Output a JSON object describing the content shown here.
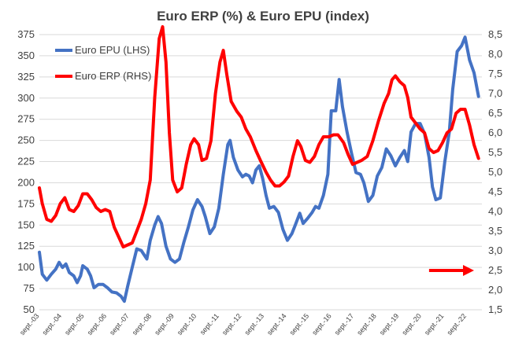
{
  "chart_data": {
    "type": "line",
    "title": "Euro ERP (%) & Euro EPU (index)",
    "legend_position": "top-left",
    "grid": true,
    "y_left": {
      "range": [
        50,
        375
      ],
      "ticks": [
        "50",
        "75",
        "100",
        "125",
        "150",
        "175",
        "200",
        "225",
        "250",
        "275",
        "300",
        "325",
        "350",
        "375"
      ]
    },
    "y_right": {
      "range": [
        1.5,
        8.5
      ],
      "ticks": [
        "1,5",
        "2,0",
        "2,5",
        "3,0",
        "3,5",
        "4,0",
        "4,5",
        "5,0",
        "5,5",
        "6,0",
        "6,5",
        "7,0",
        "7,5",
        "8,0",
        "8,5"
      ]
    },
    "x_ticks": [
      "sept.-03",
      "sept.-04",
      "sept.-05",
      "sept.-06",
      "sept.-07",
      "sept.-08",
      "sept.-09",
      "sept.-10",
      "sept.-11",
      "sept.-12",
      "sept.-13",
      "sept.-14",
      "sept.-15",
      "sept.-16",
      "sept.-17",
      "sept.-18",
      "sept.-19",
      "sept.-20",
      "sept.-21",
      "sept.-22"
    ],
    "x_range": [
      2003.67,
      2023.35
    ],
    "series": [
      {
        "name": "Euro EPU (LHS)",
        "axis": "left",
        "color": "#4472c4",
        "points": [
          [
            2003.67,
            118
          ],
          [
            2003.8,
            92
          ],
          [
            2004.0,
            85
          ],
          [
            2004.2,
            92
          ],
          [
            2004.4,
            98
          ],
          [
            2004.55,
            106
          ],
          [
            2004.7,
            100
          ],
          [
            2004.85,
            104
          ],
          [
            2005.0,
            94
          ],
          [
            2005.2,
            90
          ],
          [
            2005.35,
            82
          ],
          [
            2005.5,
            90
          ],
          [
            2005.6,
            102
          ],
          [
            2005.8,
            98
          ],
          [
            2005.95,
            90
          ],
          [
            2006.1,
            76
          ],
          [
            2006.3,
            80
          ],
          [
            2006.5,
            80
          ],
          [
            2006.7,
            76
          ],
          [
            2006.9,
            71
          ],
          [
            2007.1,
            70
          ],
          [
            2007.3,
            66
          ],
          [
            2007.45,
            60
          ],
          [
            2007.6,
            78
          ],
          [
            2007.8,
            100
          ],
          [
            2008.0,
            122
          ],
          [
            2008.2,
            120
          ],
          [
            2008.45,
            110
          ],
          [
            2008.6,
            132
          ],
          [
            2008.8,
            150
          ],
          [
            2008.95,
            160
          ],
          [
            2009.1,
            152
          ],
          [
            2009.3,
            125
          ],
          [
            2009.5,
            110
          ],
          [
            2009.7,
            106
          ],
          [
            2009.9,
            110
          ],
          [
            2010.1,
            130
          ],
          [
            2010.3,
            148
          ],
          [
            2010.5,
            168
          ],
          [
            2010.7,
            180
          ],
          [
            2010.9,
            172
          ],
          [
            2011.05,
            160
          ],
          [
            2011.25,
            140
          ],
          [
            2011.45,
            148
          ],
          [
            2011.65,
            170
          ],
          [
            2011.85,
            210
          ],
          [
            2012.05,
            245
          ],
          [
            2012.15,
            250
          ],
          [
            2012.3,
            230
          ],
          [
            2012.5,
            215
          ],
          [
            2012.7,
            207
          ],
          [
            2012.85,
            210
          ],
          [
            2013.0,
            208
          ],
          [
            2013.15,
            200
          ],
          [
            2013.3,
            215
          ],
          [
            2013.45,
            220
          ],
          [
            2013.6,
            205
          ],
          [
            2013.75,
            185
          ],
          [
            2013.9,
            170
          ],
          [
            2014.1,
            172
          ],
          [
            2014.3,
            165
          ],
          [
            2014.5,
            145
          ],
          [
            2014.7,
            132
          ],
          [
            2014.9,
            140
          ],
          [
            2015.05,
            150
          ],
          [
            2015.25,
            164
          ],
          [
            2015.4,
            152
          ],
          [
            2015.6,
            158
          ],
          [
            2015.8,
            165
          ],
          [
            2015.95,
            172
          ],
          [
            2016.1,
            170
          ],
          [
            2016.3,
            185
          ],
          [
            2016.5,
            210
          ],
          [
            2016.65,
            285
          ],
          [
            2016.85,
            285
          ],
          [
            2017.0,
            322
          ],
          [
            2017.15,
            290
          ],
          [
            2017.35,
            260
          ],
          [
            2017.55,
            235
          ],
          [
            2017.75,
            212
          ],
          [
            2017.95,
            210
          ],
          [
            2018.1,
            200
          ],
          [
            2018.3,
            178
          ],
          [
            2018.5,
            185
          ],
          [
            2018.7,
            208
          ],
          [
            2018.9,
            218
          ],
          [
            2019.1,
            240
          ],
          [
            2019.3,
            232
          ],
          [
            2019.5,
            220
          ],
          [
            2019.7,
            230
          ],
          [
            2019.9,
            238
          ],
          [
            2020.05,
            225
          ],
          [
            2020.2,
            260
          ],
          [
            2020.4,
            270
          ],
          [
            2020.6,
            270
          ],
          [
            2020.8,
            258
          ],
          [
            2021.0,
            230
          ],
          [
            2021.15,
            195
          ],
          [
            2021.3,
            180
          ],
          [
            2021.5,
            182
          ],
          [
            2021.7,
            225
          ],
          [
            2021.9,
            260
          ],
          [
            2022.05,
            310
          ],
          [
            2022.25,
            355
          ],
          [
            2022.45,
            362
          ],
          [
            2022.6,
            372
          ],
          [
            2022.8,
            345
          ],
          [
            2023.0,
            330
          ],
          [
            2023.2,
            302
          ]
        ]
      },
      {
        "name": "Euro ERP (RHS)",
        "axis": "right",
        "color": "#ff0000",
        "points": [
          [
            2003.67,
            4.6
          ],
          [
            2003.8,
            4.2
          ],
          [
            2004.0,
            3.8
          ],
          [
            2004.2,
            3.75
          ],
          [
            2004.4,
            3.9
          ],
          [
            2004.6,
            4.2
          ],
          [
            2004.8,
            4.35
          ],
          [
            2005.0,
            4.05
          ],
          [
            2005.2,
            4.0
          ],
          [
            2005.4,
            4.15
          ],
          [
            2005.6,
            4.45
          ],
          [
            2005.8,
            4.45
          ],
          [
            2006.0,
            4.3
          ],
          [
            2006.2,
            4.1
          ],
          [
            2006.4,
            4.0
          ],
          [
            2006.6,
            4.05
          ],
          [
            2006.8,
            4.0
          ],
          [
            2007.0,
            3.6
          ],
          [
            2007.2,
            3.35
          ],
          [
            2007.4,
            3.1
          ],
          [
            2007.6,
            3.15
          ],
          [
            2007.8,
            3.2
          ],
          [
            2008.0,
            3.5
          ],
          [
            2008.2,
            3.8
          ],
          [
            2008.4,
            4.2
          ],
          [
            2008.6,
            4.8
          ],
          [
            2008.8,
            6.9
          ],
          [
            2009.0,
            8.4
          ],
          [
            2009.15,
            8.7
          ],
          [
            2009.3,
            7.8
          ],
          [
            2009.45,
            6.0
          ],
          [
            2009.6,
            4.8
          ],
          [
            2009.8,
            4.5
          ],
          [
            2010.0,
            4.6
          ],
          [
            2010.2,
            5.2
          ],
          [
            2010.4,
            5.7
          ],
          [
            2010.55,
            5.85
          ],
          [
            2010.75,
            5.7
          ],
          [
            2010.9,
            5.3
          ],
          [
            2011.1,
            5.35
          ],
          [
            2011.3,
            5.8
          ],
          [
            2011.5,
            7.0
          ],
          [
            2011.7,
            7.8
          ],
          [
            2011.85,
            8.1
          ],
          [
            2012.0,
            7.5
          ],
          [
            2012.2,
            6.8
          ],
          [
            2012.45,
            6.55
          ],
          [
            2012.65,
            6.4
          ],
          [
            2012.85,
            6.1
          ],
          [
            2013.05,
            5.9
          ],
          [
            2013.3,
            5.55
          ],
          [
            2013.5,
            5.3
          ],
          [
            2013.75,
            5.0
          ],
          [
            2013.95,
            4.8
          ],
          [
            2014.15,
            4.65
          ],
          [
            2014.35,
            4.65
          ],
          [
            2014.55,
            4.75
          ],
          [
            2014.75,
            4.9
          ],
          [
            2014.95,
            5.4
          ],
          [
            2015.15,
            5.8
          ],
          [
            2015.3,
            5.65
          ],
          [
            2015.5,
            5.3
          ],
          [
            2015.7,
            5.25
          ],
          [
            2015.9,
            5.4
          ],
          [
            2016.1,
            5.7
          ],
          [
            2016.3,
            5.9
          ],
          [
            2016.55,
            5.9
          ],
          [
            2016.75,
            5.95
          ],
          [
            2016.95,
            5.95
          ],
          [
            2017.2,
            5.75
          ],
          [
            2017.4,
            5.45
          ],
          [
            2017.6,
            5.2
          ],
          [
            2017.8,
            5.25
          ],
          [
            2018.0,
            5.3
          ],
          [
            2018.25,
            5.4
          ],
          [
            2018.5,
            5.8
          ],
          [
            2018.75,
            6.3
          ],
          [
            2019.0,
            6.75
          ],
          [
            2019.2,
            7.0
          ],
          [
            2019.35,
            7.35
          ],
          [
            2019.5,
            7.45
          ],
          [
            2019.7,
            7.3
          ],
          [
            2019.9,
            7.2
          ],
          [
            2020.05,
            6.9
          ],
          [
            2020.2,
            6.4
          ],
          [
            2020.4,
            6.25
          ],
          [
            2020.6,
            6.1
          ],
          [
            2020.8,
            6.0
          ],
          [
            2021.0,
            5.6
          ],
          [
            2021.2,
            5.5
          ],
          [
            2021.4,
            5.55
          ],
          [
            2021.6,
            5.75
          ],
          [
            2021.8,
            6.0
          ],
          [
            2022.0,
            6.1
          ],
          [
            2022.2,
            6.5
          ],
          [
            2022.4,
            6.6
          ],
          [
            2022.6,
            6.6
          ],
          [
            2022.8,
            6.2
          ],
          [
            2023.0,
            5.7
          ],
          [
            2023.2,
            5.35
          ]
        ]
      }
    ],
    "annotations": [
      {
        "type": "arrow",
        "direction": "right",
        "color": "#ff0000",
        "from_x": 2021.0,
        "to_x": 2023.0,
        "y_right": 2.5
      }
    ]
  }
}
